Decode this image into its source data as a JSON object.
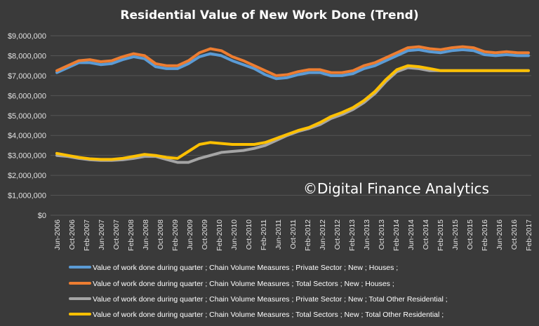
{
  "chart_data": {
    "type": "line",
    "title": "Residential Value of  New Work Done (Trend)",
    "watermark": "©Digital Finance Analytics",
    "ylim": [
      0,
      9000000
    ],
    "y_ticks": [
      {
        "value": 0,
        "label": "$0"
      },
      {
        "value": 1000000,
        "label": "$1,000,000"
      },
      {
        "value": 2000000,
        "label": "$2,000,000"
      },
      {
        "value": 3000000,
        "label": "$3,000,000"
      },
      {
        "value": 4000000,
        "label": "$4,000,000"
      },
      {
        "value": 5000000,
        "label": "$5,000,000"
      },
      {
        "value": 6000000,
        "label": "$6,000,000"
      },
      {
        "value": 7000000,
        "label": "$7,000,000"
      },
      {
        "value": 8000000,
        "label": "$8,000,000"
      },
      {
        "value": 9000000,
        "label": "$9,000,000"
      }
    ],
    "grid": true,
    "legend_position": "bottom",
    "x": [
      "Jun-2006",
      "Sep-2006",
      "Dec-2006",
      "Mar-2007",
      "Jun-2007",
      "Sep-2007",
      "Dec-2007",
      "Mar-2008",
      "Jun-2008",
      "Sep-2008",
      "Dec-2008",
      "Mar-2009",
      "Jun-2009",
      "Sep-2009",
      "Dec-2009",
      "Mar-2010",
      "Jun-2010",
      "Sep-2010",
      "Dec-2010",
      "Mar-2011",
      "Jun-2011",
      "Sep-2011",
      "Dec-2011",
      "Mar-2012",
      "Jun-2012",
      "Sep-2012",
      "Dec-2012",
      "Mar-2013",
      "Jun-2013",
      "Sep-2013",
      "Dec-2013",
      "Mar-2014",
      "Jun-2014",
      "Sep-2014",
      "Dec-2014",
      "Mar-2015",
      "Jun-2015",
      "Sep-2015",
      "Dec-2015",
      "Mar-2016",
      "Jun-2016",
      "Sep-2016",
      "Dec-2016",
      "Mar-2017"
    ],
    "x_tick_labels": [
      "Jun-2006",
      "Oct-2006",
      "Feb-2007",
      "Jun-2007",
      "Oct-2007",
      "Feb-2008",
      "Jun-2008",
      "Oct-2008",
      "Feb-2009",
      "Jun-2009",
      "Oct-2009",
      "Feb-2010",
      "Jun-2010",
      "Oct-2010",
      "Feb-2011",
      "Jun-2011",
      "Oct-2011",
      "Feb-2012",
      "Jun-2012",
      "Oct-2012",
      "Feb-2013",
      "Jun-2013",
      "Oct-2013",
      "Feb-2014",
      "Jun-2014",
      "Oct-2014",
      "Feb-2015",
      "Jun-2015",
      "Oct-2015",
      "Feb-2016",
      "Jun-2016",
      "Oct-2016",
      "Feb-2017"
    ],
    "series": [
      {
        "name": "Value of work done during quarter ;  Chain Volume Measures ;  Private Sector ;  New ;  Houses ;",
        "color": "#5b9bd5",
        "values": [
          7150000,
          7400000,
          7650000,
          7650000,
          7550000,
          7600000,
          7800000,
          7950000,
          7850000,
          7450000,
          7350000,
          7350000,
          7600000,
          7950000,
          8100000,
          8000000,
          7750000,
          7550000,
          7350000,
          7050000,
          6850000,
          6900000,
          7050000,
          7150000,
          7150000,
          7000000,
          7000000,
          7100000,
          7350000,
          7500000,
          7750000,
          8000000,
          8250000,
          8300000,
          8200000,
          8150000,
          8250000,
          8300000,
          8250000,
          8050000,
          8000000,
          8050000,
          8000000,
          8000000
        ]
      },
      {
        "name": "Value of work done during quarter ;  Chain Volume Measures ;  Total Sectors ;  New ;  Houses ;",
        "color": "#ed7d31",
        "values": [
          7250000,
          7500000,
          7750000,
          7800000,
          7700000,
          7750000,
          7950000,
          8100000,
          8000000,
          7600000,
          7500000,
          7500000,
          7750000,
          8150000,
          8350000,
          8250000,
          7950000,
          7750000,
          7500000,
          7250000,
          7000000,
          7050000,
          7200000,
          7300000,
          7300000,
          7150000,
          7150000,
          7250000,
          7500000,
          7650000,
          7900000,
          8150000,
          8400000,
          8450000,
          8350000,
          8300000,
          8400000,
          8450000,
          8400000,
          8200000,
          8150000,
          8200000,
          8150000,
          8150000
        ]
      },
      {
        "name": "Value of work done during quarter ;  Chain Volume Measures ;  Private Sector ;  New ;  Total Other Residential ;",
        "color": "#a5a5a5",
        "values": [
          3000000,
          2950000,
          2850000,
          2780000,
          2750000,
          2750000,
          2780000,
          2850000,
          2950000,
          2950000,
          2800000,
          2650000,
          2650000,
          2850000,
          3000000,
          3150000,
          3200000,
          3250000,
          3350000,
          3500000,
          3750000,
          4000000,
          4200000,
          4350000,
          4550000,
          4850000,
          5050000,
          5300000,
          5650000,
          6100000,
          6700000,
          7200000,
          7400000,
          7350000,
          7250000,
          7250000,
          7250000,
          7250000,
          7250000,
          7250000,
          7250000,
          7250000,
          7250000,
          7250000
        ]
      },
      {
        "name": "Value of work done during quarter ;  Chain Volume Measures ;  Total Sectors ;  New ;  Total Other Residential ;",
        "color": "#ffc000",
        "values": [
          3100000,
          3000000,
          2900000,
          2830000,
          2800000,
          2800000,
          2850000,
          2950000,
          3050000,
          3000000,
          2900000,
          2850000,
          3200000,
          3550000,
          3650000,
          3600000,
          3550000,
          3550000,
          3550000,
          3650000,
          3850000,
          4050000,
          4250000,
          4400000,
          4650000,
          4950000,
          5150000,
          5400000,
          5750000,
          6200000,
          6800000,
          7300000,
          7500000,
          7450000,
          7350000,
          7250000,
          7250000,
          7250000,
          7250000,
          7250000,
          7250000,
          7250000,
          7250000,
          7250000
        ]
      }
    ]
  }
}
